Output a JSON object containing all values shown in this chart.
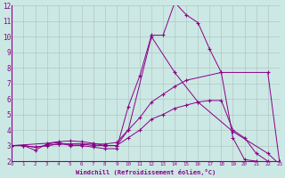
{
  "xlabel": "Windchill (Refroidissement éolien,°C)",
  "background_color": "#cce8e4",
  "grid_color": "#b0c8c4",
  "line_color": "#880088",
  "xlim": [
    0,
    23
  ],
  "ylim": [
    2,
    12
  ],
  "xticks": [
    0,
    1,
    2,
    3,
    4,
    5,
    6,
    7,
    8,
    9,
    10,
    11,
    12,
    13,
    14,
    15,
    16,
    17,
    18,
    19,
    20,
    21,
    22,
    23
  ],
  "yticks": [
    2,
    3,
    4,
    5,
    6,
    7,
    8,
    9,
    10,
    11,
    12
  ],
  "lines": [
    {
      "x": [
        0,
        1,
        2,
        3,
        4,
        5,
        6,
        7,
        8,
        9,
        10,
        11,
        12,
        13,
        14,
        15,
        16,
        17,
        18,
        19,
        20,
        21,
        22,
        23
      ],
      "y": [
        3.0,
        3.0,
        2.7,
        3.1,
        3.2,
        3.0,
        3.0,
        2.9,
        2.8,
        2.8,
        5.5,
        7.5,
        10.1,
        10.1,
        12.2,
        11.4,
        10.9,
        9.2,
        7.7,
        3.5,
        2.1,
        2.0,
        1.85,
        1.8
      ]
    },
    {
      "x": [
        0,
        1,
        2,
        3,
        4,
        5,
        6,
        7,
        8,
        9,
        10,
        11,
        12,
        13,
        14,
        15,
        18,
        22,
        23
      ],
      "y": [
        3.0,
        3.0,
        2.9,
        3.0,
        3.1,
        3.1,
        3.1,
        3.1,
        3.1,
        3.2,
        4.0,
        4.8,
        5.8,
        6.3,
        6.8,
        7.2,
        7.7,
        7.7,
        2.0
      ]
    },
    {
      "x": [
        0,
        1,
        2,
        3,
        4,
        5,
        6,
        7,
        8,
        9,
        10,
        11,
        12,
        13,
        14,
        15,
        16,
        17,
        18,
        19,
        20,
        21,
        22,
        23
      ],
      "y": [
        3.0,
        3.0,
        2.9,
        3.0,
        3.1,
        3.1,
        3.1,
        3.0,
        3.0,
        3.0,
        3.5,
        4.0,
        4.7,
        5.0,
        5.4,
        5.6,
        5.8,
        5.9,
        5.9,
        4.0,
        3.5,
        2.5,
        2.0,
        1.85
      ]
    },
    {
      "x": [
        0,
        3,
        4,
        5,
        6,
        7,
        8,
        9,
        10,
        12,
        14,
        16,
        19,
        22,
        23
      ],
      "y": [
        3.0,
        3.15,
        3.25,
        3.3,
        3.25,
        3.15,
        3.0,
        3.0,
        4.0,
        10.0,
        7.7,
        5.8,
        3.9,
        2.5,
        1.8
      ]
    }
  ]
}
